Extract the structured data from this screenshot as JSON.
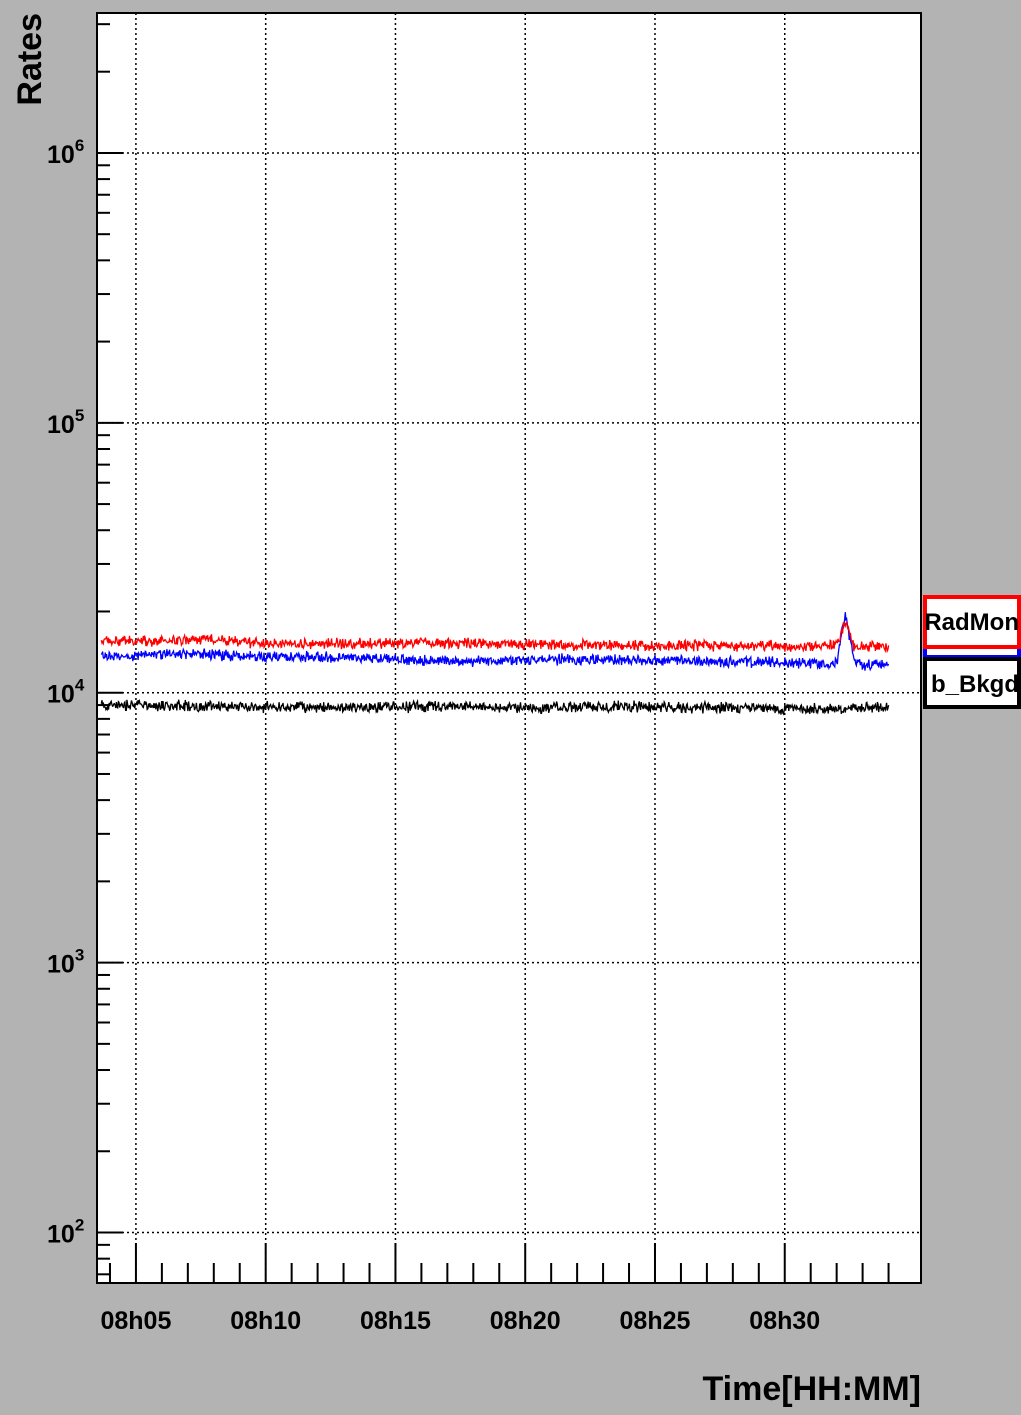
{
  "chart_data": {
    "type": "line",
    "title": "",
    "xlabel": "Time[HH:MM]",
    "ylabel": "Rates",
    "yscale": "log",
    "ylim": [
      65,
      3300000
    ],
    "xlim": [
      "08:03:30",
      "08:35:15"
    ],
    "xticks": [
      "08h05",
      "08h10",
      "08h15",
      "08h20",
      "08h25",
      "08h30"
    ],
    "yticks": [
      {
        "base": "10",
        "exp": "2",
        "value": 100
      },
      {
        "base": "10",
        "exp": "3",
        "value": 1000
      },
      {
        "base": "10",
        "exp": "4",
        "value": 10000
      },
      {
        "base": "10",
        "exp": "5",
        "value": 100000
      },
      {
        "base": "10",
        "exp": "6",
        "value": 1000000
      }
    ],
    "grid": true,
    "legend_position": "right",
    "series": [
      {
        "name": "RadMon",
        "color": "#ff0000",
        "x": [
          "08:03:40",
          "08:06:00",
          "08:08:00",
          "08:10:00",
          "08:13:00",
          "08:16:00",
          "08:20:00",
          "08:24:00",
          "08:28:00",
          "08:31:00",
          "08:32:00",
          "08:32:20",
          "08:32:40",
          "08:33:00",
          "08:34:00"
        ],
        "values": [
          15500,
          15500,
          15800,
          15200,
          15200,
          15300,
          15100,
          15000,
          14900,
          14900,
          15000,
          18500,
          14700,
          14800,
          14800
        ]
      },
      {
        "name": "b_Bkgd",
        "color": "#0000ff",
        "x": [
          "08:03:40",
          "08:05:00",
          "08:07:00",
          "08:10:00",
          "08:13:00",
          "08:16:00",
          "08:18:00",
          "08:20:00",
          "08:24:00",
          "08:28:00",
          "08:31:00",
          "08:32:00",
          "08:32:20",
          "08:32:40",
          "08:33:00",
          "08:34:00"
        ],
        "values": [
          13700,
          13700,
          14000,
          13500,
          13600,
          13200,
          13000,
          13300,
          13200,
          13000,
          12900,
          12900,
          19500,
          13200,
          12700,
          12900
        ]
      },
      {
        "name": "b_Bkgd",
        "color": "#000000",
        "x": [
          "08:03:40",
          "08:08:00",
          "08:12:00",
          "08:16:00",
          "08:20:00",
          "08:24:00",
          "08:28:00",
          "08:31:00",
          "08:34:00"
        ],
        "values": [
          9000,
          8900,
          8800,
          8900,
          8800,
          8900,
          8800,
          8700,
          8800
        ]
      }
    ],
    "legend": [
      {
        "label": "RadMon",
        "color": "#ff0000"
      },
      {
        "label": "b_Bkgd",
        "color": "#0000ff"
      },
      {
        "label": "b_Bkgd",
        "color": "#000000"
      }
    ]
  }
}
